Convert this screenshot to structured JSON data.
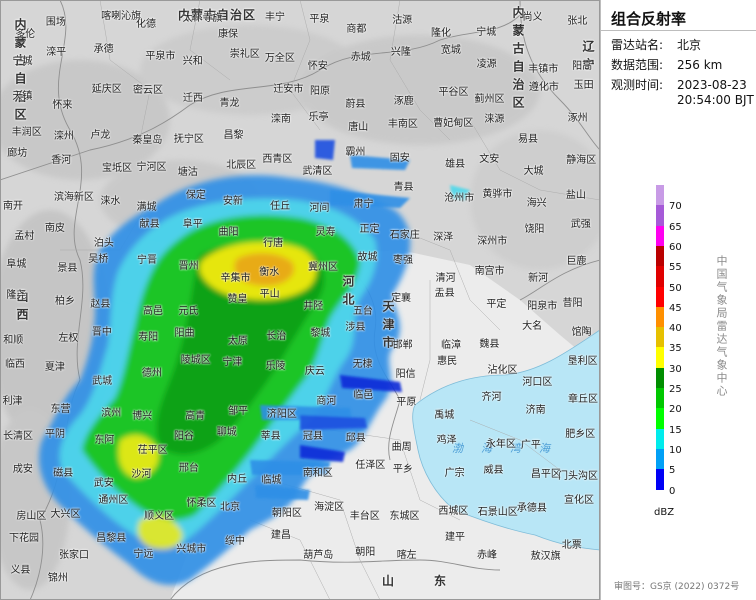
{
  "panel": {
    "title": "组合反射率",
    "station": {
      "label": "雷达站名:",
      "value": "北京"
    },
    "range": {
      "label": "数据范围:",
      "value": "256 km"
    },
    "time": {
      "label": "观测时间:",
      "date": "2023-08-23",
      "clock": "20:54:00 BJT"
    }
  },
  "legend": {
    "unit": "dBZ",
    "ticks": [
      "70",
      "65",
      "60",
      "55",
      "50",
      "45",
      "40",
      "35",
      "30",
      "25",
      "20",
      "15",
      "10",
      "5",
      "0"
    ],
    "colors": [
      "#c89be6",
      "#a65ad8",
      "#ff00f0",
      "#ba0000",
      "#e00000",
      "#ff0000",
      "#ff9000",
      "#e6c000",
      "#ffff00",
      "#008e00",
      "#00c800",
      "#00ff00",
      "#00ecec",
      "#01a0f6",
      "#0000f6"
    ]
  },
  "credit": "中国气象局雷达气象中心",
  "review_number": "审图号：GS京 (2022) 0372号",
  "map": {
    "land_color": "#d6d6d6",
    "sea_color": "#b8e6f6",
    "plain_color": "#ececec",
    "regions": [
      {
        "name": "内蒙古自治区",
        "orient": "h"
      },
      {
        "name": "内蒙古自治区",
        "orient": "v"
      },
      {
        "name": "内蒙古自治区",
        "orient": "v"
      },
      {
        "name": "辽宁",
        "orient": "v"
      },
      {
        "name": "山西",
        "orient": "v"
      },
      {
        "name": "河北",
        "orient": "v"
      },
      {
        "name": "天津市",
        "orient": "v"
      },
      {
        "name": "山东",
        "orient": "h"
      }
    ],
    "sea": "渤海湾海",
    "places": [
      "多伦",
      "围场",
      "喀喇沁旗",
      "化德",
      "太仆寺旗",
      "康保",
      "丰宁",
      "平泉",
      "商都",
      "沽源",
      "隆化",
      "宁城",
      "尚义",
      "张北",
      "宁城",
      "滦平",
      "承德",
      "平泉市",
      "兴和",
      "崇礼区",
      "万全区",
      "怀安",
      "赤城",
      "兴隆",
      "宽城",
      "凌源",
      "丰镇市",
      "阳高",
      "天镇",
      "怀来",
      "延庆区",
      "密云区",
      "迁西",
      "青龙",
      "迁安市",
      "阳原",
      "蔚县",
      "涿鹿",
      "平谷区",
      "蓟州区",
      "遵化市",
      "玉田",
      "丰润区",
      "滦州",
      "卢龙",
      "秦皇岛",
      "抚宁区",
      "昌黎",
      "滦南",
      "乐亭",
      "唐山",
      "丰南区",
      "曹妃甸区",
      "涞源",
      "易县",
      "涿州",
      "廊坊",
      "香河",
      "宝坻区",
      "宁河区",
      "塘沽",
      "北辰区",
      "西青区",
      "武清区",
      "霸州",
      "固安",
      "雄县",
      "文安",
      "大城",
      "静海区",
      "南开",
      "滨海新区",
      "涞水",
      "满城",
      "保定",
      "安新",
      "任丘",
      "河间",
      "肃宁",
      "青县",
      "沧州市",
      "黄骅市",
      "海兴",
      "盐山",
      "孟村",
      "南皮",
      "泊头",
      "献县",
      "阜平",
      "曲阳",
      "行唐",
      "灵寿",
      "正定",
      "石家庄",
      "深泽",
      "深州市",
      "饶阳",
      "武强",
      "阜城",
      "景县",
      "吴桥",
      "宁晋",
      "晋州",
      "辛集市",
      "衡水",
      "冀州区",
      "故城",
      "枣强",
      "清河",
      "南宫市",
      "新河",
      "巨鹿",
      "隆尧",
      "柏乡",
      "赵县",
      "高邑",
      "元氏",
      "赞皇",
      "平山",
      "井陉",
      "五台",
      "定襄",
      "盂县",
      "平定",
      "阳泉市",
      "昔阳",
      "和顺",
      "左权",
      "晋中",
      "寿阳",
      "阳曲",
      "太原",
      "长治",
      "黎城",
      "涉县",
      "邯郸",
      "临漳",
      "魏县",
      "大名",
      "馆陶",
      "临西",
      "夏津",
      "武城",
      "德州",
      "陵城区",
      "宁津",
      "乐陵",
      "庆云",
      "无棣",
      "阳信",
      "惠民",
      "沾化区",
      "河口区",
      "垦利区",
      "利津",
      "东营",
      "滨州",
      "博兴",
      "高青",
      "邹平",
      "济阳区",
      "商河",
      "临邑",
      "平原",
      "禹城",
      "齐河",
      "济南",
      "章丘区",
      "长清区",
      "平阴",
      "东阿",
      "茌平区",
      "阳谷",
      "聊城",
      "莘县",
      "冠县",
      "邱县",
      "曲周",
      "鸡泽",
      "永年区",
      "广平",
      "肥乡区",
      "成安",
      "磁县",
      "武安",
      "沙河",
      "邢台",
      "内丘",
      "临城",
      "南和区",
      "任泽区",
      "平乡",
      "广宗",
      "威县",
      "昌平区",
      "门头沟区",
      "房山区",
      "大兴区",
      "通州区",
      "顺义区",
      "怀柔区",
      "北京",
      "朝阳区",
      "海淀区",
      "丰台区",
      "东城区",
      "西城区",
      "石景山区",
      "承德县",
      "宣化区",
      "下花园",
      "张家口",
      "昌黎县",
      "宁远",
      "兴城市",
      "绥中",
      "建昌",
      "葫芦岛",
      "朝阳",
      "喀左",
      "建平",
      "赤峰",
      "敖汉旗",
      "北票",
      "义县",
      "锦州"
    ]
  }
}
